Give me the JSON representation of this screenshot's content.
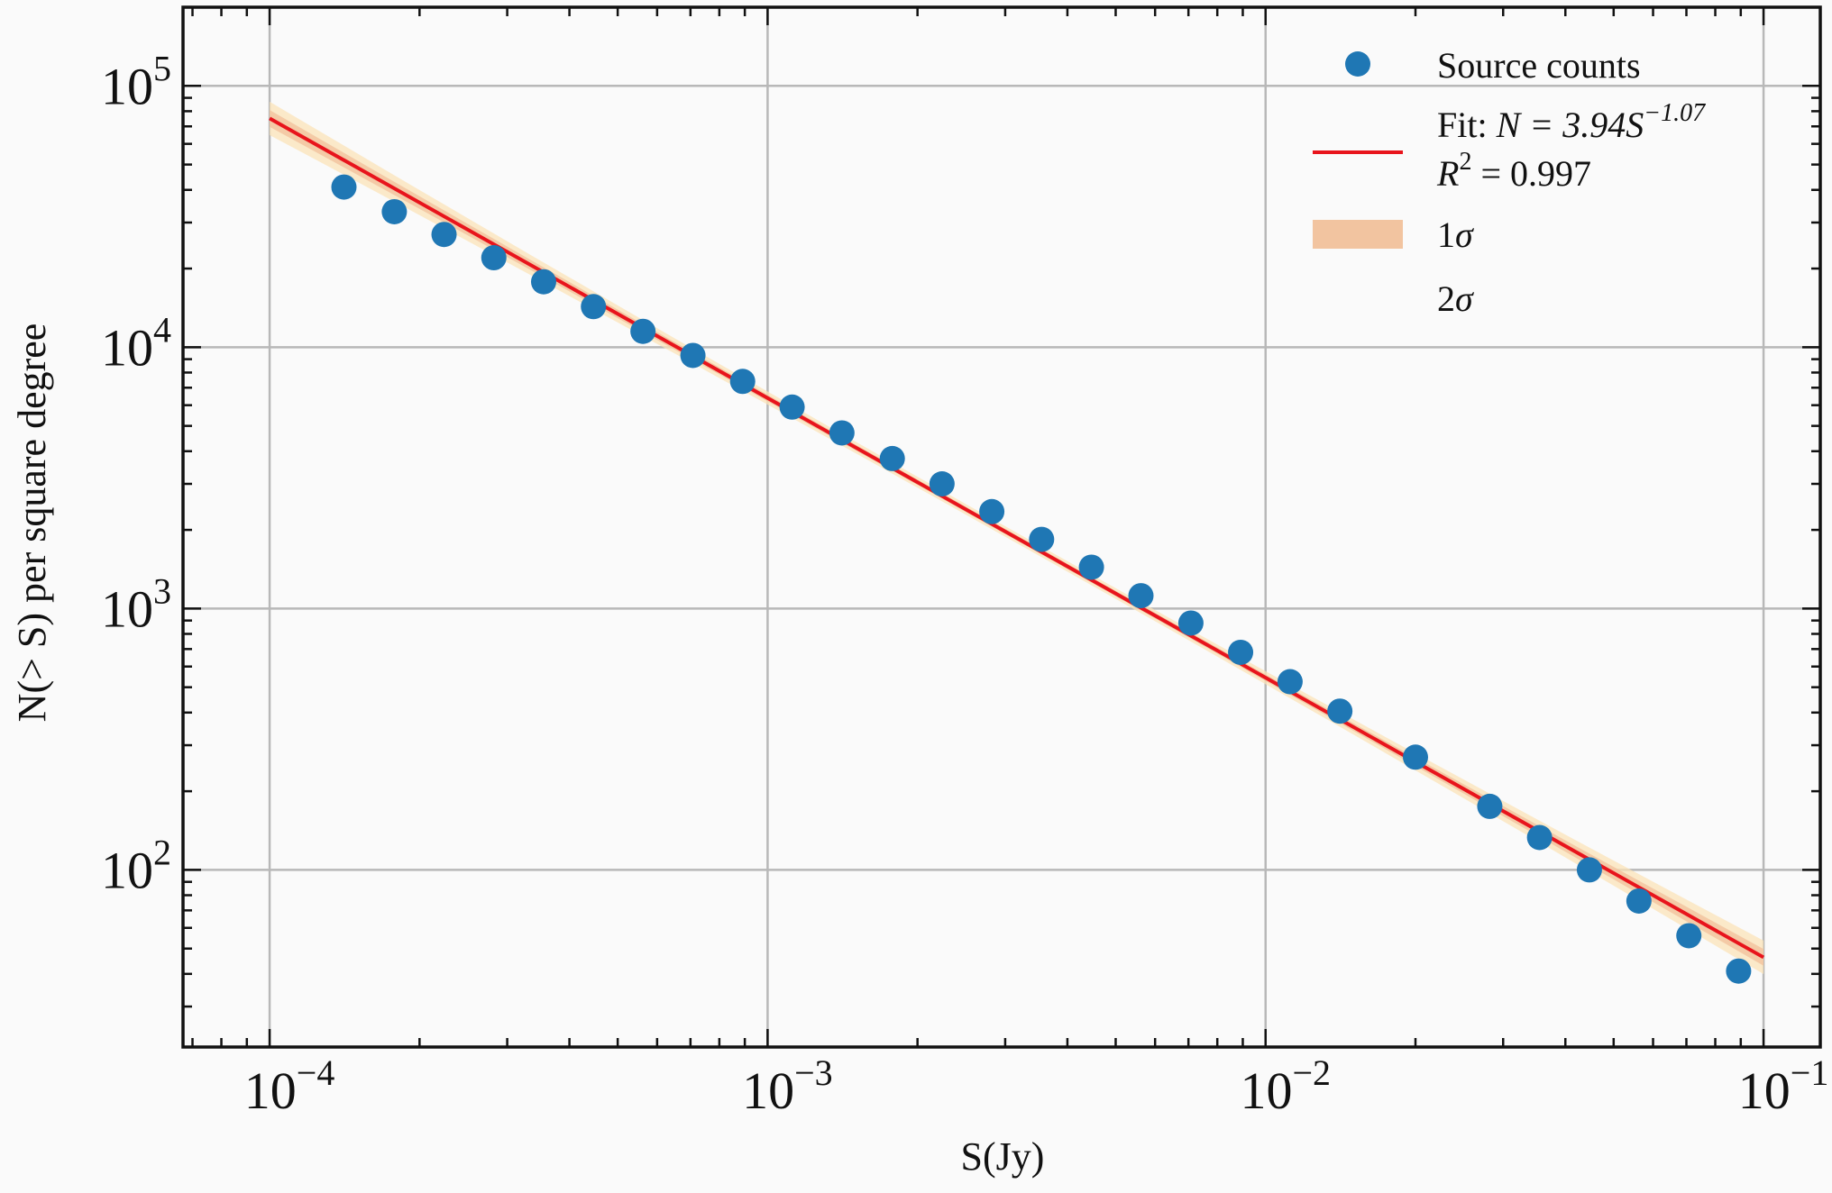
{
  "chart_data": {
    "type": "scatter",
    "xscale": "log",
    "yscale": "log",
    "xlim": [
      6.7e-05,
      0.13
    ],
    "ylim": [
      21,
      200000
    ],
    "xlabel": "S(Jy)",
    "ylabel": "N(> S) per square degree",
    "grid": true,
    "legend_position": "top-right",
    "x_ticks": [
      {
        "value": 0.0001,
        "base": "10",
        "exp": "−4"
      },
      {
        "value": 0.001,
        "base": "10",
        "exp": "−3"
      },
      {
        "value": 0.01,
        "base": "10",
        "exp": "−2"
      },
      {
        "value": 0.1,
        "base": "10",
        "exp": "−1"
      }
    ],
    "y_ticks": [
      {
        "value": 100,
        "base": "10",
        "exp": "2"
      },
      {
        "value": 1000,
        "base": "10",
        "exp": "3"
      },
      {
        "value": 10000,
        "base": "10",
        "exp": "4"
      },
      {
        "value": 100000,
        "base": "10",
        "exp": "5"
      }
    ],
    "series": [
      {
        "name": "Source counts",
        "color": "#1f77b4",
        "x": [
          0.000141,
          0.000178,
          0.000224,
          0.000282,
          0.000355,
          0.000447,
          0.000562,
          0.000708,
          0.000891,
          0.00112,
          0.00141,
          0.00178,
          0.00224,
          0.00282,
          0.00355,
          0.00447,
          0.00562,
          0.00708,
          0.00891,
          0.0112,
          0.0141,
          0.02,
          0.0282,
          0.0355,
          0.0447,
          0.0562,
          0.0708,
          0.0891
        ],
        "y": [
          41000,
          33000,
          27000,
          22000,
          17800,
          14300,
          11500,
          9300,
          7400,
          5900,
          4700,
          3750,
          3000,
          2350,
          1840,
          1440,
          1120,
          880,
          680,
          525,
          405,
          270,
          175,
          133,
          100,
          76,
          56,
          41
        ]
      }
    ],
    "fit": {
      "label_prefix": "Fit: ",
      "label_math": "N = 3.94S",
      "label_exp": "−1.07",
      "r2_prefix": "R",
      "r2_sup": "2",
      "r2_value": " = 0.997",
      "amplitude": 3.94,
      "slope": -1.07,
      "x_range": [
        0.0001,
        0.1
      ],
      "color": "#e8141c"
    },
    "bands": [
      {
        "label_num": "1",
        "label_sym": "σ",
        "color": "#f2c4a0"
      },
      {
        "label_num": "2",
        "label_sym": "σ",
        "color": "#fbe3b8"
      }
    ]
  }
}
